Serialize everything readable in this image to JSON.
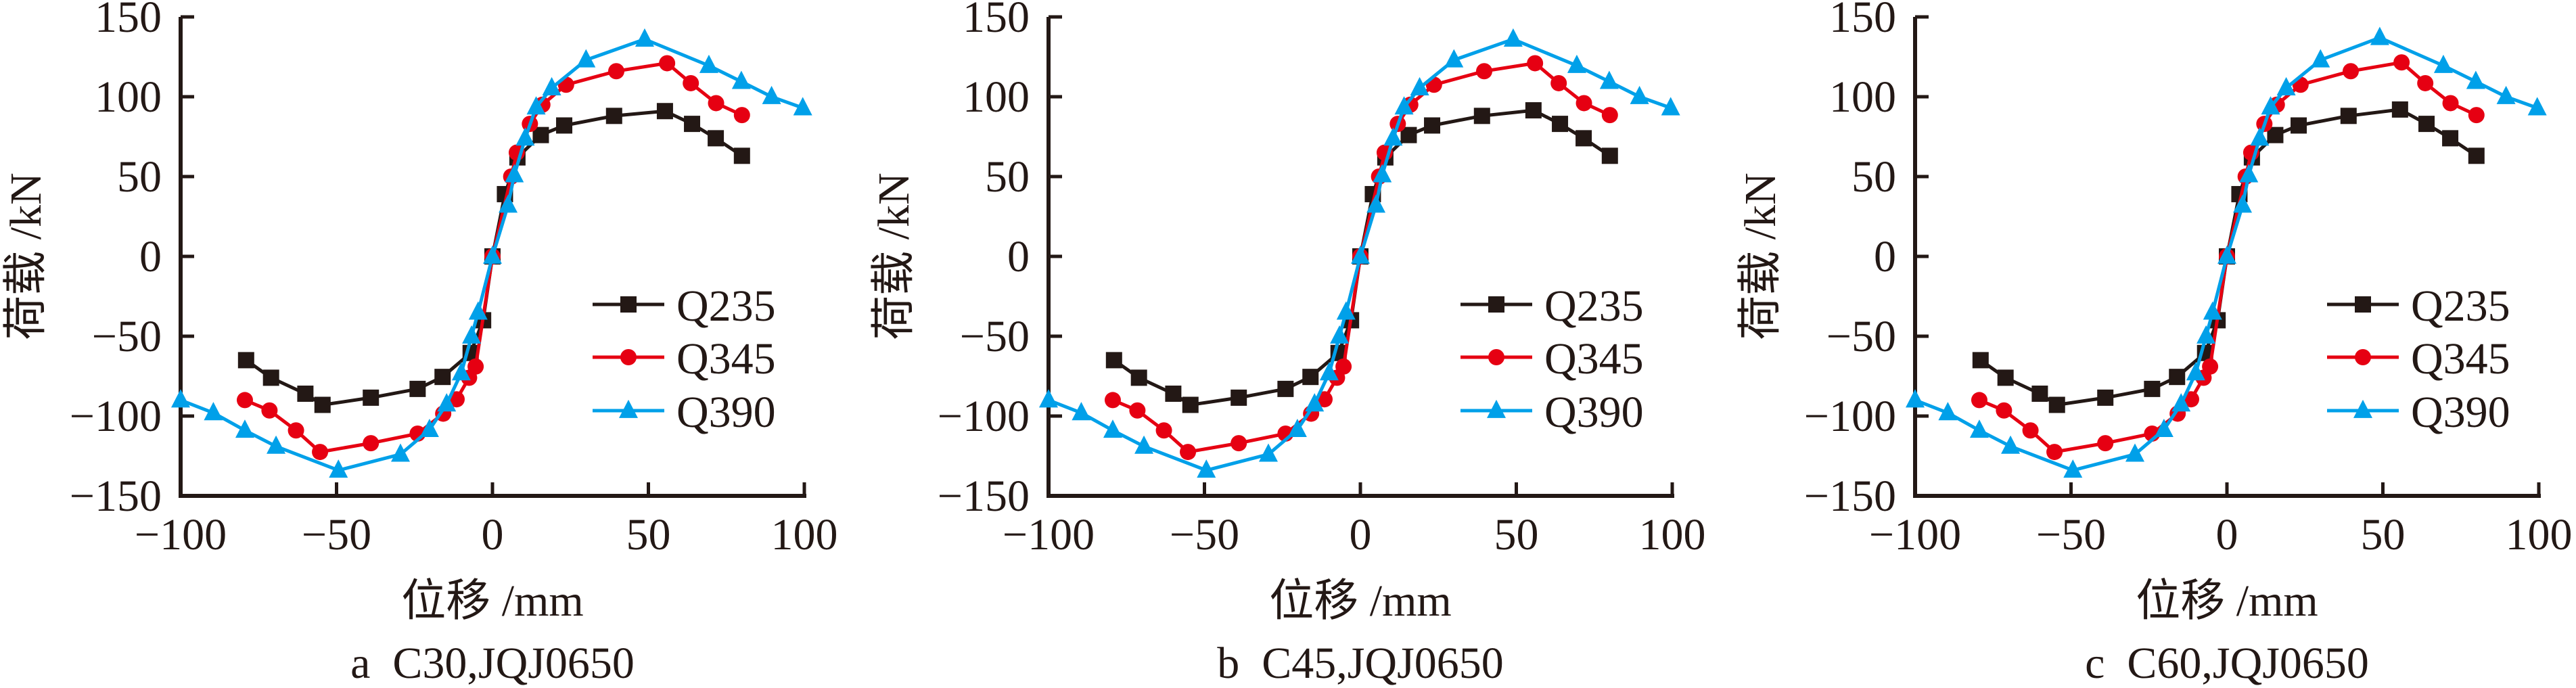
{
  "figure": {
    "panels": [
      {
        "caption": "a  C30,JQJ0650",
        "xlabel": "位移 /mm",
        "ylabel": "荷载 /kN"
      },
      {
        "caption": "b  C45,JQJ0650",
        "xlabel": "位移 /mm",
        "ylabel": "荷载 /kN"
      },
      {
        "caption": "c  C60,JQJ0650",
        "xlabel": "位移 /mm",
        "ylabel": "荷载 /kN"
      }
    ]
  },
  "chart_data": [
    {
      "type": "line",
      "title": "a  C30,JQJ0650",
      "xlabel": "位移 /mm",
      "ylabel": "荷载 /kN",
      "xlim": [
        -100,
        100
      ],
      "ylim": [
        -150,
        150
      ],
      "xticks": [
        -100,
        -50,
        0,
        50,
        100
      ],
      "yticks": [
        150,
        100,
        50,
        0,
        -50,
        -100,
        -150
      ],
      "grid": false,
      "legend_position": "right-center",
      "series": [
        {
          "name": "Q235",
          "marker": "square",
          "color": "#231815",
          "x": [
            -79,
            -71,
            -60,
            -54.5,
            -39,
            -24,
            -16,
            -7,
            -3,
            0,
            4,
            8,
            15.5,
            23,
            39,
            55.3,
            64,
            71.6,
            80
          ],
          "y": [
            -65,
            -76,
            -86,
            -93,
            -88.5,
            -83,
            -75.5,
            -60.5,
            -40,
            0,
            39,
            62,
            76,
            82,
            88,
            91,
            83,
            74,
            63
          ]
        },
        {
          "name": "Q345",
          "marker": "circle",
          "color": "#E60012",
          "x": [
            -79.4,
            -71.5,
            -63,
            -55.3,
            -39,
            -24,
            -15.8,
            -11.5,
            -7.5,
            -5.4,
            0,
            6,
            7.8,
            12,
            16,
            23.6,
            39.7,
            56,
            63.6,
            71.7,
            80
          ],
          "y": [
            -90,
            -96.5,
            -109,
            -122.5,
            -117,
            -111,
            -98.5,
            -89.5,
            -76,
            -69,
            0,
            50,
            65,
            83,
            95,
            107.5,
            116,
            121,
            108.5,
            96,
            88.5
          ]
        },
        {
          "name": "Q390",
          "marker": "triangle",
          "color": "#00A0E9",
          "x": [
            -100,
            -89.5,
            -79.4,
            -69.4,
            -49.4,
            -29.5,
            -20.2,
            -14.7,
            -10,
            -6.7,
            -4.6,
            0,
            5,
            7,
            10.5,
            14,
            19,
            30,
            48.8,
            69.4,
            79.8,
            89.5,
            99.5
          ],
          "y": [
            -90,
            -98,
            -109,
            -119,
            -134,
            -124,
            -108.5,
            -92.5,
            -73,
            -50,
            -35,
            0,
            32,
            51,
            74,
            93.5,
            105.5,
            123,
            136,
            119.5,
            109.5,
            100,
            93
          ]
        }
      ]
    },
    {
      "type": "line",
      "title": "b  C45,JQJ0650",
      "xlabel": "位移 /mm",
      "ylabel": "荷载 /kN",
      "xlim": [
        -100,
        100
      ],
      "ylim": [
        -150,
        150
      ],
      "xticks": [
        -100,
        -50,
        0,
        50,
        100
      ],
      "yticks": [
        150,
        100,
        50,
        0,
        -50,
        -100,
        -150
      ],
      "grid": false,
      "legend_position": "right-center",
      "series": [
        {
          "name": "Q235",
          "marker": "square",
          "color": "#231815",
          "x": [
            -79,
            -71,
            -60,
            -54.5,
            -39,
            -24,
            -16,
            -7,
            -3,
            0,
            4,
            8,
            15.5,
            23,
            39,
            55.5,
            64,
            71.6,
            80
          ],
          "y": [
            -65,
            -76,
            -86,
            -93,
            -88.5,
            -83,
            -75.5,
            -60.5,
            -40,
            0,
            39,
            62,
            76,
            82,
            88,
            91.5,
            83,
            74,
            63
          ]
        },
        {
          "name": "Q345",
          "marker": "circle",
          "color": "#E60012",
          "x": [
            -79.4,
            -71.5,
            -63,
            -55.3,
            -39,
            -24,
            -15.8,
            -11.5,
            -7.5,
            -5.4,
            0,
            6,
            7.8,
            12,
            16,
            23.6,
            39.7,
            56,
            63.6,
            71.7,
            80
          ],
          "y": [
            -90,
            -96.5,
            -109,
            -122.5,
            -117,
            -111,
            -98.5,
            -89.5,
            -76,
            -69,
            0,
            50,
            65,
            83,
            95,
            107.5,
            116,
            121,
            108.5,
            96,
            88.5
          ]
        },
        {
          "name": "Q390",
          "marker": "triangle",
          "color": "#00A0E9",
          "x": [
            -100,
            -89.5,
            -79.4,
            -69.4,
            -49.4,
            -29.5,
            -20.2,
            -14.7,
            -10,
            -6.7,
            -4.6,
            0,
            5,
            7,
            10.5,
            14,
            19,
            30,
            49,
            69.4,
            79.8,
            89.5,
            99.5
          ],
          "y": [
            -90,
            -98,
            -109,
            -119,
            -134,
            -124,
            -108.5,
            -92.5,
            -73,
            -50,
            -35,
            0,
            32,
            51,
            74,
            93.5,
            105.5,
            123,
            136,
            119.5,
            109.5,
            100,
            93
          ]
        }
      ]
    },
    {
      "type": "line",
      "title": "c  C60,JQJ0650",
      "xlabel": "位移 /mm",
      "ylabel": "荷载 /kN",
      "xlim": [
        -100,
        100
      ],
      "ylim": [
        -150,
        150
      ],
      "xticks": [
        -100,
        -50,
        0,
        50,
        100
      ],
      "yticks": [
        150,
        100,
        50,
        0,
        -50,
        -100,
        -150
      ],
      "grid": false,
      "legend_position": "right-center",
      "series": [
        {
          "name": "Q235",
          "marker": "square",
          "color": "#231815",
          "x": [
            -79,
            -71,
            -60,
            -54.5,
            -39,
            -24,
            -16,
            -7,
            -3,
            0,
            4,
            8,
            15.5,
            23,
            39,
            55.5,
            64,
            71.6,
            80
          ],
          "y": [
            -65,
            -76,
            -86,
            -93,
            -88.5,
            -83,
            -75.5,
            -60.5,
            -40,
            0,
            39,
            62,
            76,
            82,
            88,
            92,
            83,
            74,
            63
          ]
        },
        {
          "name": "Q345",
          "marker": "circle",
          "color": "#E60012",
          "x": [
            -79.4,
            -71.5,
            -63,
            -55.3,
            -39,
            -24,
            -15.8,
            -11.5,
            -7.5,
            -5.4,
            0,
            6,
            7.8,
            12,
            16,
            23.6,
            39.7,
            56,
            63.6,
            71.7,
            80
          ],
          "y": [
            -90,
            -96.5,
            -109,
            -122.5,
            -117,
            -111,
            -98.5,
            -89.5,
            -76,
            -69,
            0,
            50,
            65,
            83,
            95,
            107.5,
            116,
            121.5,
            108.5,
            96,
            88.5
          ]
        },
        {
          "name": "Q390",
          "marker": "triangle",
          "color": "#00A0E9",
          "x": [
            -100,
            -89.5,
            -79.4,
            -69.4,
            -49.4,
            -29.5,
            -20.2,
            -14.7,
            -10,
            -6.7,
            -4.6,
            0,
            5,
            7,
            10.5,
            14,
            19,
            30,
            49,
            69.4,
            79.8,
            89.5,
            99.5
          ],
          "y": [
            -90,
            -98,
            -109,
            -119,
            -134,
            -124,
            -108.5,
            -92.5,
            -73,
            -50,
            -35,
            0,
            32,
            51,
            74,
            93.5,
            105.5,
            123,
            137,
            119.5,
            109.5,
            100,
            93
          ]
        }
      ]
    }
  ]
}
